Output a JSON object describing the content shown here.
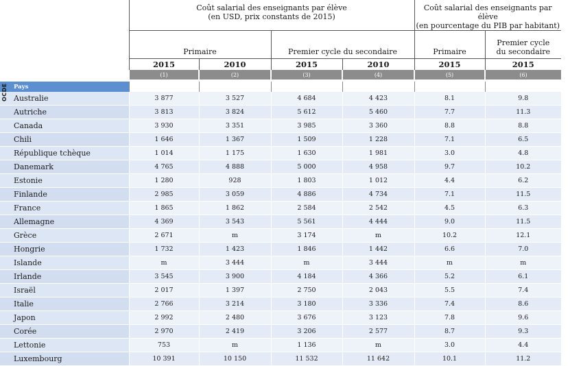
{
  "header": {
    "group1": {
      "title": "Coût salarial des enseignants par élève",
      "subtitle": "(en USD, prix constants de 2015)"
    },
    "group2": {
      "title": "Coût salarial des enseignants par élève",
      "subtitle": "(en pourcentage du PIB par habitant)"
    },
    "sub": {
      "primaire": "Primaire",
      "secondaire": "Premier cycle du secondaire",
      "primaire2": "Primaire",
      "secondaire2_line1": "Premier cycle",
      "secondaire2_line2": "du secondaire"
    },
    "years": [
      "2015",
      "2010",
      "2015",
      "2010",
      "2015",
      "2015"
    ],
    "col_numbers": [
      "(1)",
      "(2)",
      "(3)",
      "(4)",
      "(5)",
      "(6)"
    ],
    "pays_label": "Pays",
    "ocde_label": "OCDE"
  },
  "rows": [
    {
      "country": "Australie",
      "v": [
        "3 877",
        "3 527",
        "4 684",
        "4 423",
        "8.1",
        "9.8"
      ]
    },
    {
      "country": "Autriche",
      "v": [
        "3 813",
        "3 824",
        "5 612",
        "5 460",
        "7.7",
        "11.3"
      ]
    },
    {
      "country": "Canada",
      "v": [
        "3 930",
        "3 351",
        "3 985",
        "3 360",
        "8.8",
        "8.8"
      ]
    },
    {
      "country": "Chili",
      "v": [
        "1 646",
        "1 367",
        "1 509",
        "1 228",
        "7.1",
        "6.5"
      ]
    },
    {
      "country": "République tchèque",
      "v": [
        "1 014",
        "1 175",
        "1 630",
        "1 981",
        "3.0",
        "4.8"
      ]
    },
    {
      "country": "Danemark",
      "v": [
        "4 765",
        "4 888",
        "5 000",
        "4 958",
        "9.7",
        "10.2"
      ]
    },
    {
      "country": "Estonie",
      "v": [
        "1 280",
        "928",
        "1 803",
        "1 012",
        "4.4",
        "6.2"
      ]
    },
    {
      "country": "Finlande",
      "v": [
        "2 985",
        "3 059",
        "4 886",
        "4 734",
        "7.1",
        "11.5"
      ]
    },
    {
      "country": "France",
      "v": [
        "1 865",
        "1 862",
        "2 584",
        "2 542",
        "4.5",
        "6.3"
      ]
    },
    {
      "country": "Allemagne",
      "v": [
        "4 369",
        "3 543",
        "5 561",
        "4 444",
        "9.0",
        "11.5"
      ]
    },
    {
      "country": "Grèce",
      "v": [
        "2 671",
        "m",
        "3 174",
        "m",
        "10.2",
        "12.1"
      ]
    },
    {
      "country": "Hongrie",
      "v": [
        "1 732",
        "1 423",
        "1 846",
        "1 442",
        "6.6",
        "7.0"
      ]
    },
    {
      "country": "Islande",
      "v": [
        "m",
        "3 444",
        "m",
        "3 444",
        "m",
        "m"
      ]
    },
    {
      "country": "Irlande",
      "v": [
        "3 545",
        "3 900",
        "4 184",
        "4 366",
        "5.2",
        "6.1"
      ]
    },
    {
      "country": "Israël",
      "v": [
        "2 017",
        "1 397",
        "2 750",
        "2 043",
        "5.5",
        "7.4"
      ]
    },
    {
      "country": "Italie",
      "v": [
        "2 766",
        "3 214",
        "3 180",
        "3 336",
        "7.4",
        "8.6"
      ]
    },
    {
      "country": "Japon",
      "v": [
        "2 992",
        "2 480",
        "3 676",
        "3 123",
        "7.8",
        "9.6"
      ]
    },
    {
      "country": "Corée",
      "v": [
        "2 970",
        "2 419",
        "3 206",
        "2 577",
        "8.7",
        "9.3"
      ]
    },
    {
      "country": "Lettonie",
      "v": [
        "753",
        "m",
        "1 136",
        "m",
        "3.0",
        "4.4"
      ]
    },
    {
      "country": "Luxembourg",
      "v": [
        "10 391",
        "10 150",
        "11 532",
        "11 642",
        "10.1",
        "11.2"
      ]
    }
  ]
}
